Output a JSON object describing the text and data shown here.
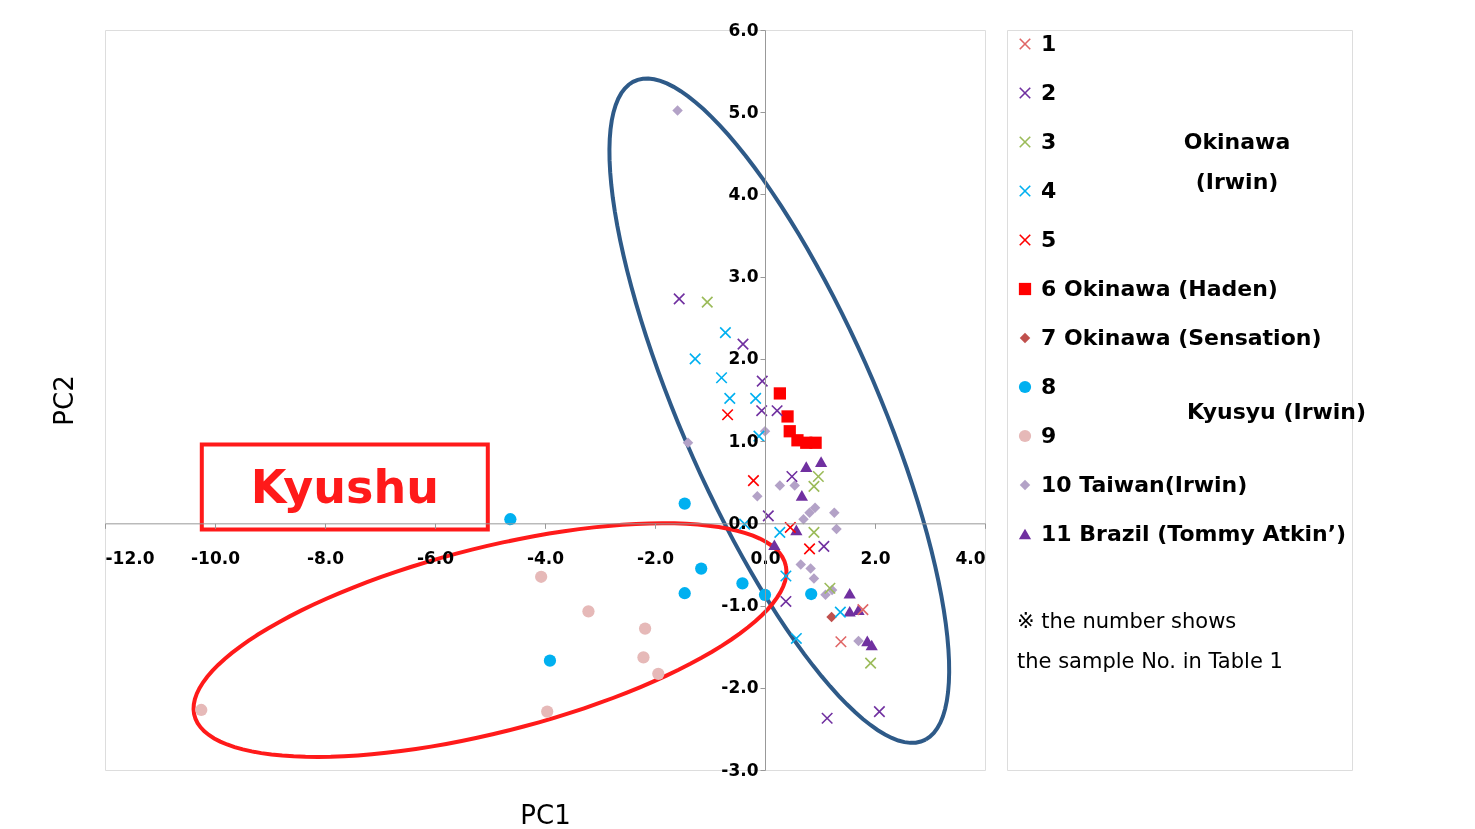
{
  "chart_data": {
    "type": "scatter",
    "xlabel": "PC1",
    "ylabel": "PC2",
    "xlim": [
      -12,
      4
    ],
    "ylim": [
      -3,
      6
    ],
    "xticks": [
      {
        "value": -12,
        "label": "-12.0"
      },
      {
        "value": -10,
        "label": "-10.0"
      },
      {
        "value": -8,
        "label": "-8.0"
      },
      {
        "value": -6,
        "label": "-6.0"
      },
      {
        "value": -4,
        "label": "-4.0"
      },
      {
        "value": -2,
        "label": "-2.0"
      },
      {
        "value": 0,
        "label": "0.0"
      },
      {
        "value": 2,
        "label": "2.0"
      },
      {
        "value": 4,
        "label": "4.0"
      }
    ],
    "yticks": [
      {
        "value": -3,
        "label": "-3.0"
      },
      {
        "value": -2,
        "label": "-2.0"
      },
      {
        "value": -1,
        "label": "-1.0"
      },
      {
        "value": 0,
        "label": "0.0"
      },
      {
        "value": 1,
        "label": "1.0"
      },
      {
        "value": 2,
        "label": "2.0"
      },
      {
        "value": 3,
        "label": "3.0"
      },
      {
        "value": 4,
        "label": "4.0"
      },
      {
        "value": 5,
        "label": "5.0"
      },
      {
        "value": 6,
        "label": "6.0"
      }
    ],
    "grid": false,
    "legend": "right",
    "series": [
      {
        "name": "1",
        "color": "#e06666",
        "marker": "cross",
        "x": [
          1.38,
          1.78
        ],
        "values": [
          -1.44,
          -1.05
        ]
      },
      {
        "name": "2",
        "color": "#7030a0",
        "marker": "cross",
        "x": [
          -1.56,
          -0.4,
          -0.05,
          -0.06,
          0.22,
          0.49,
          0.06,
          1.07,
          0.38,
          1.13,
          2.08
        ],
        "values": [
          2.73,
          2.18,
          1.73,
          1.37,
          1.37,
          0.57,
          0.09,
          -0.28,
          -0.95,
          -2.37,
          -2.29
        ]
      },
      {
        "name": "3",
        "color": "#9bbb59",
        "marker": "cross",
        "x": [
          -1.05,
          0.97,
          0.89,
          0.89,
          1.18,
          1.92
        ],
        "values": [
          2.69,
          0.57,
          0.45,
          -0.11,
          -0.79,
          -1.7
        ]
      },
      {
        "name": "4",
        "color": "#00b0f0",
        "marker": "cross",
        "x": [
          -0.72,
          -1.27,
          -0.79,
          -0.64,
          -0.17,
          -0.11,
          -0.37,
          0.27,
          0.38,
          1.37,
          0.57
        ],
        "values": [
          2.32,
          2.0,
          1.77,
          1.52,
          1.52,
          1.06,
          -0.01,
          -0.11,
          -0.64,
          -1.08,
          -1.4
        ]
      },
      {
        "name": "5",
        "color": "#ff0000",
        "marker": "cross",
        "x": [
          -0.68,
          -0.21,
          0.46,
          0.81
        ],
        "values": [
          1.32,
          0.52,
          -0.05,
          -0.31
        ]
      },
      {
        "name": "6  Okinawa (Haden)",
        "color": "#ff0000",
        "marker": "square",
        "x": [
          0.27,
          0.41,
          0.45,
          0.59,
          0.75,
          0.92
        ],
        "values": [
          1.58,
          1.3,
          1.12,
          1.01,
          0.98,
          0.98
        ]
      },
      {
        "name": "7  Okinawa (Sensation)",
        "color": "#c0504d",
        "marker": "diamond",
        "x": [
          1.21
        ],
        "values": [
          -1.14
        ]
      },
      {
        "name": "8",
        "color": "#00b0f0",
        "marker": "circle",
        "x": [
          -4.63,
          -1.46,
          -1.16,
          -1.46,
          -0.41,
          0.0,
          0.84,
          -3.91
        ],
        "values": [
          0.05,
          0.24,
          -0.55,
          -0.85,
          -0.73,
          -0.87,
          -0.86,
          -1.67
        ]
      },
      {
        "name": "9",
        "color": "#e6b9b8",
        "marker": "circle",
        "x": [
          -4.07,
          -3.21,
          -2.18,
          -2.21,
          -1.94,
          -3.96,
          -10.25
        ],
        "values": [
          -0.65,
          -1.07,
          -1.28,
          -1.63,
          -1.83,
          -2.29,
          -2.27
        ]
      },
      {
        "name": "10  Taiwan(Irwin)",
        "color": "#b3a2c7",
        "marker": "diamond",
        "x": [
          -1.59,
          -1.4,
          0.0,
          -0.14,
          0.27,
          0.54,
          0.81,
          0.91,
          0.7,
          1.26,
          1.3,
          0.65,
          0.83,
          0.89,
          1.1,
          1.22,
          1.7
        ],
        "values": [
          5.02,
          0.98,
          1.12,
          0.33,
          0.46,
          0.46,
          0.13,
          0.19,
          0.05,
          0.13,
          -0.07,
          -0.5,
          -0.55,
          -0.67,
          -0.87,
          -0.81,
          -1.43
        ]
      },
      {
        "name": "11 Brazil (Tommy Atkin’)",
        "color": "#7030a0",
        "marker": "triangle",
        "x": [
          0.75,
          1.02,
          0.67,
          0.57,
          0.17,
          1.54,
          1.54,
          1.7,
          1.86,
          1.94
        ],
        "values": [
          0.69,
          0.75,
          0.34,
          -0.08,
          -0.26,
          -0.85,
          -1.07,
          -1.05,
          -1.43,
          -1.48
        ]
      }
    ],
    "annotations": [
      "Kyushu",
      "Okinawa\n(Irwin)",
      "Kyusyu (Irwin)",
      "※  the number shows\nthe sample No. in Table 1"
    ]
  }
}
